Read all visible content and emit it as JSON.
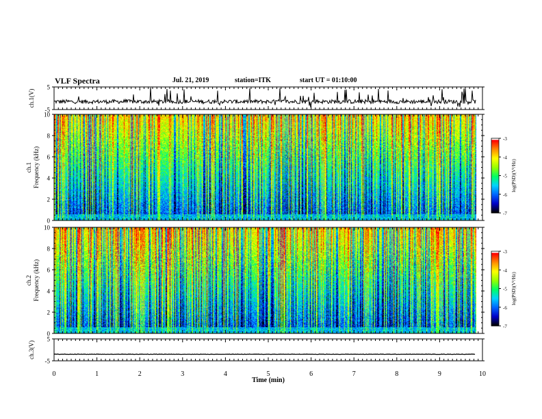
{
  "header": {
    "title": "VLF Spectra",
    "date": "Jul. 21, 2019",
    "station": "station=ITK",
    "start": "start UT =  01:10:00"
  },
  "colorbar": {
    "label": "log(PSD)(V²/Hz)",
    "ticks": [
      "-3",
      "-4",
      "-5",
      "-6",
      "-7"
    ],
    "colors": [
      "#000000",
      "#0000c8",
      "#0064ff",
      "#00d2ff",
      "#00ff64",
      "#96ff00",
      "#ffff00",
      "#ff8c00",
      "#ff0000",
      "#ffffff"
    ]
  },
  "chart_data": [
    {
      "type": "line",
      "panel": "ch1-waveform",
      "ylabel": "ch.1(V)",
      "ylim": [
        -5,
        5
      ],
      "yticks": [
        "5",
        "-5"
      ],
      "baseline": -1.5
    },
    {
      "type": "heatmap",
      "panel": "ch1-spectrogram",
      "ylabel": "ch.1 Frequency (kHz)",
      "ylim": [
        0,
        10
      ],
      "yticks": [
        "0",
        "2",
        "4",
        "6",
        "8",
        "10"
      ],
      "clim": [
        -7,
        -3
      ]
    },
    {
      "type": "heatmap",
      "panel": "ch2-spectrogram",
      "ylabel": "ch.2 Frequency (kHz)",
      "ylim": [
        0,
        10
      ],
      "yticks": [
        "0",
        "2",
        "4",
        "6",
        "8",
        "10"
      ],
      "clim": [
        -7,
        -3
      ]
    },
    {
      "type": "line",
      "panel": "ch3-waveform",
      "ylabel": "ch.3(V)",
      "ylim": [
        -5,
        5
      ],
      "yticks": [
        "5",
        "-5"
      ],
      "baseline": -2.0
    }
  ],
  "xaxis": {
    "label": "Time (min)",
    "xlim": [
      0,
      10
    ],
    "ticks": [
      "0",
      "1",
      "2",
      "3",
      "4",
      "5",
      "6",
      "7",
      "8",
      "9",
      "10"
    ],
    "data_end": 9.85
  }
}
